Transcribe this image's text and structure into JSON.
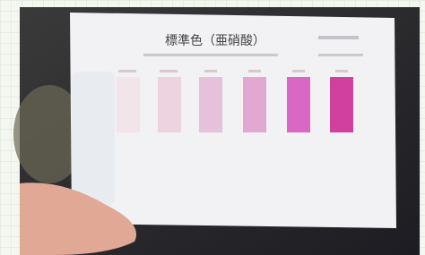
{
  "card": {
    "title": "標準色（亜硝酸）"
  }
}
